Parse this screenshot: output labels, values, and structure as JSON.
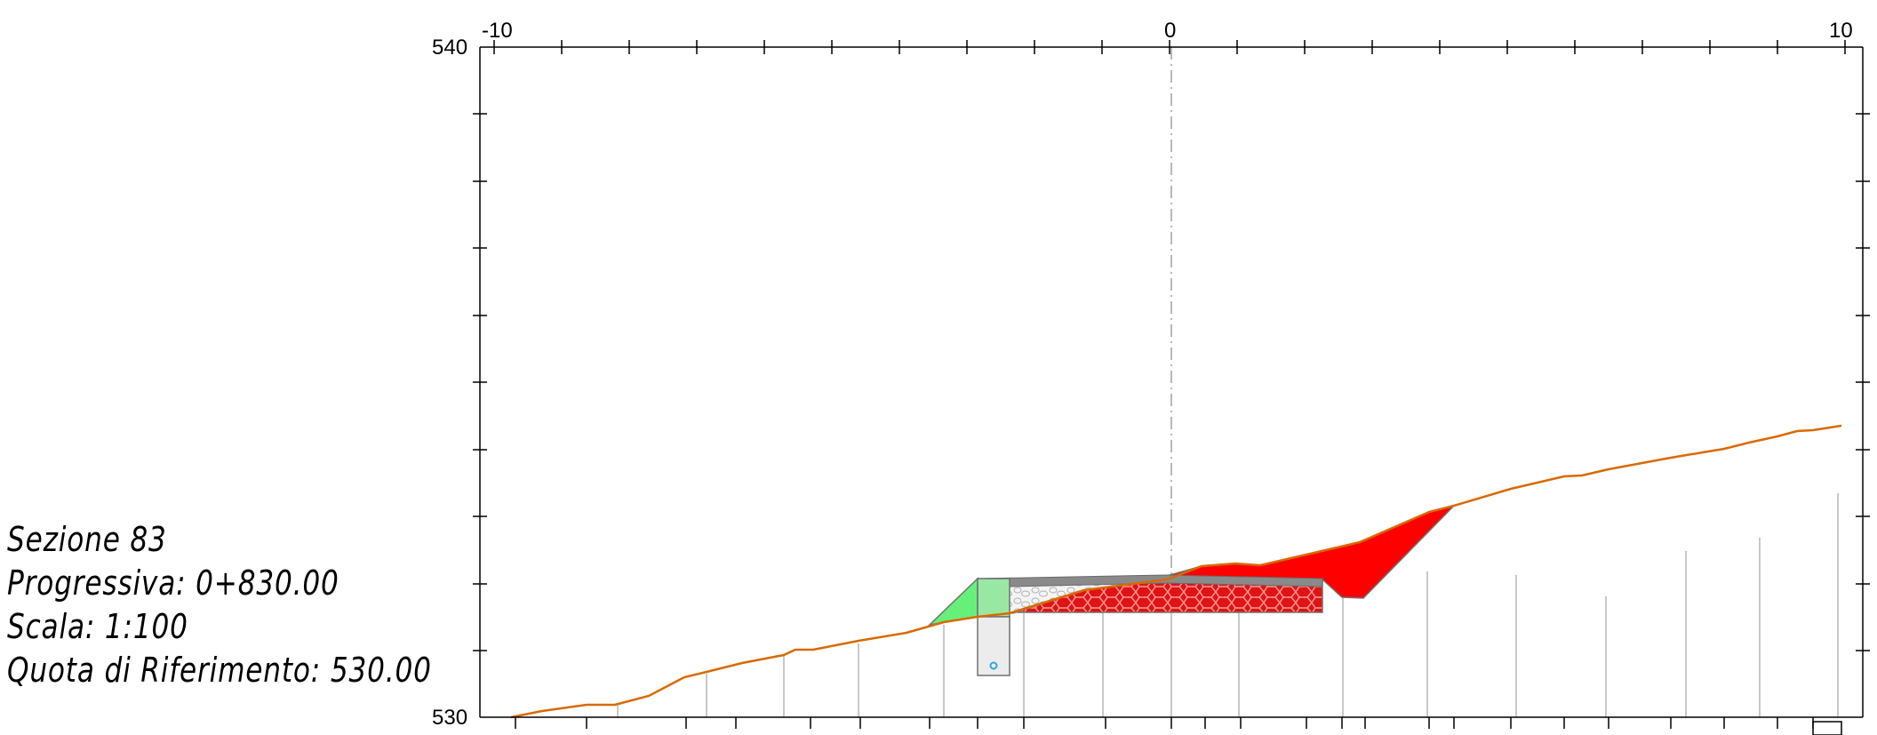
{
  "section": {
    "title": "Sezione 83",
    "progressive": "Progressiva: 0+830.00",
    "scale": "Scala: 1:100",
    "reference_level": "Quota di Riferimento: 530.00"
  },
  "axes": {
    "x_left_label": "-10",
    "x_center_label": "0",
    "x_right_label": "10",
    "y_top_label": "540",
    "y_bottom_label": "530",
    "x_range": [
      -10,
      10
    ],
    "y_range": [
      530,
      540
    ]
  },
  "colors": {
    "terrain": "#d96a00",
    "fill_red": "#ff0000",
    "embankment_green": "#66f07a",
    "wall_green": "#98e8a4",
    "pavement_gray": "#8a8a8a",
    "axis": "#000000",
    "gridline": "#c8c8c8",
    "drain_marker": "#29a8e0"
  }
}
